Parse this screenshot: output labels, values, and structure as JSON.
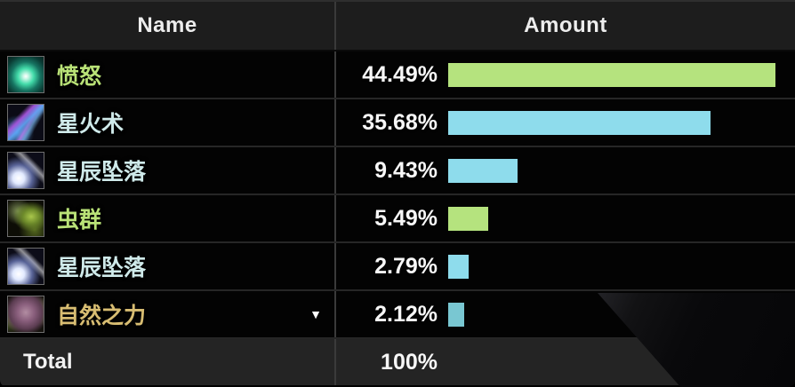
{
  "table": {
    "header": {
      "name": "Name",
      "amount": "Amount"
    },
    "rows": [
      {
        "name": "愤怒",
        "icon": "wrath",
        "name_color": "#b9e277",
        "percent": "44.49%",
        "value": 44.49,
        "bar_color": "#b5e37e",
        "has_dropdown": false
      },
      {
        "name": "星火术",
        "icon": "starfire",
        "name_color": "#cfeaea",
        "percent": "35.68%",
        "value": 35.68,
        "bar_color": "#8edcec",
        "has_dropdown": false
      },
      {
        "name": "星辰坠落",
        "icon": "starfall",
        "name_color": "#cfeaea",
        "percent": "9.43%",
        "value": 9.43,
        "bar_color": "#8edcec",
        "has_dropdown": false
      },
      {
        "name": "虫群",
        "icon": "insect-swarm",
        "name_color": "#b9e277",
        "percent": "5.49%",
        "value": 5.49,
        "bar_color": "#b5e37e",
        "has_dropdown": false
      },
      {
        "name": "星辰坠落",
        "icon": "starfall",
        "name_color": "#cfeaea",
        "percent": "2.79%",
        "value": 2.79,
        "bar_color": "#8edcec",
        "has_dropdown": false
      },
      {
        "name": "自然之力",
        "icon": "force-of-nature",
        "name_color": "#d8bd72",
        "percent": "2.12%",
        "value": 2.12,
        "bar_color": "#79c7d2",
        "has_dropdown": true
      }
    ],
    "total": {
      "label": "Total",
      "percent": "100%"
    }
  },
  "chart_data": {
    "type": "bar",
    "categories": [
      "愤怒",
      "星火术",
      "星辰坠落",
      "虫群",
      "星辰坠落",
      "自然之力"
    ],
    "values": [
      44.49,
      35.68,
      9.43,
      5.49,
      2.79,
      2.12
    ],
    "series_colors": [
      "#b5e37e",
      "#8edcec",
      "#8edcec",
      "#b5e37e",
      "#8edcec",
      "#79c7d2"
    ],
    "title": "",
    "xlabel": "Name",
    "ylabel": "Amount",
    "value_format": "percent",
    "total": "100%",
    "orientation": "horizontal",
    "legend": false,
    "grid": false
  }
}
